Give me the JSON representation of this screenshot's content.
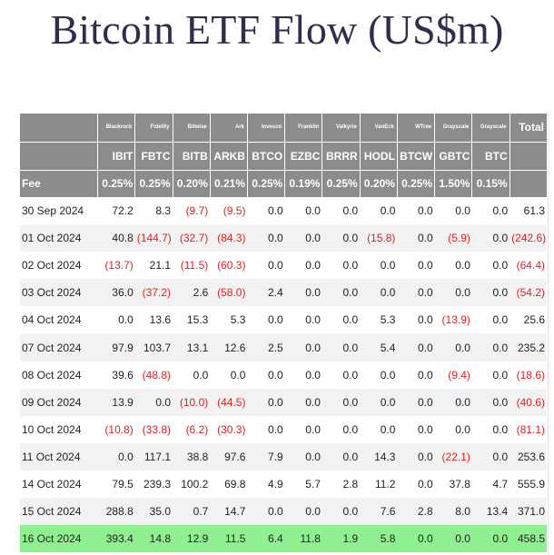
{
  "title": "Bitcoin ETF Flow (US$m)",
  "header": {
    "issuers": [
      "Blackrock",
      "Fidelity",
      "Bitwise",
      "Ark",
      "Invesco",
      "Franklin",
      "Valkyrie",
      "VanEck",
      "WTree",
      "Grayscale",
      "Grayscale"
    ],
    "total_label": "Total",
    "tickers": [
      "IBIT",
      "FBTC",
      "BITB",
      "ARKB",
      "BTCO",
      "EZBC",
      "BRRR",
      "HODL",
      "BTCW",
      "GBTC",
      "BTC"
    ],
    "fee_label": "Fee",
    "fees": [
      "0.25%",
      "0.25%",
      "0.20%",
      "0.21%",
      "0.25%",
      "0.19%",
      "0.25%",
      "0.20%",
      "0.25%",
      "1.50%",
      "0.15%"
    ]
  },
  "rows": [
    {
      "date": "30 Sep 2024",
      "values": [
        "72.2",
        "8.3",
        "(9.7)",
        "(9.5)",
        "0.0",
        "0.0",
        "0.0",
        "0.0",
        "0.0",
        "0.0",
        "0.0"
      ],
      "total": "61.3"
    },
    {
      "date": "01 Oct 2024",
      "values": [
        "40.8",
        "(144.7)",
        "(32.7)",
        "(84.3)",
        "0.0",
        "0.0",
        "0.0",
        "(15.8)",
        "0.0",
        "(5.9)",
        "0.0"
      ],
      "total": "(242.6)"
    },
    {
      "date": "02 Oct 2024",
      "values": [
        "(13.7)",
        "21.1",
        "(11.5)",
        "(60.3)",
        "0.0",
        "0.0",
        "0.0",
        "0.0",
        "0.0",
        "0.0",
        "0.0"
      ],
      "total": "(64.4)"
    },
    {
      "date": "03 Oct 2024",
      "values": [
        "36.0",
        "(37.2)",
        "2.6",
        "(58.0)",
        "2.4",
        "0.0",
        "0.0",
        "0.0",
        "0.0",
        "0.0",
        "0.0"
      ],
      "total": "(54.2)"
    },
    {
      "date": "04 Oct 2024",
      "values": [
        "0.0",
        "13.6",
        "15.3",
        "5.3",
        "0.0",
        "0.0",
        "0.0",
        "5.3",
        "0.0",
        "(13.9)",
        "0.0"
      ],
      "total": "25.6"
    },
    {
      "date": "07 Oct 2024",
      "values": [
        "97.9",
        "103.7",
        "13.1",
        "12.6",
        "2.5",
        "0.0",
        "0.0",
        "5.4",
        "0.0",
        "0.0",
        "0.0"
      ],
      "total": "235.2"
    },
    {
      "date": "08 Oct 2024",
      "values": [
        "39.6",
        "(48.8)",
        "0.0",
        "0.0",
        "0.0",
        "0.0",
        "0.0",
        "0.0",
        "0.0",
        "(9.4)",
        "0.0"
      ],
      "total": "(18.6)"
    },
    {
      "date": "09 Oct 2024",
      "values": [
        "13.9",
        "0.0",
        "(10.0)",
        "(44.5)",
        "0.0",
        "0.0",
        "0.0",
        "0.0",
        "0.0",
        "0.0",
        "0.0"
      ],
      "total": "(40.6)"
    },
    {
      "date": "10 Oct 2024",
      "values": [
        "(10.8)",
        "(33.8)",
        "(6.2)",
        "(30.3)",
        "0.0",
        "0.0",
        "0.0",
        "0.0",
        "0.0",
        "0.0",
        "0.0"
      ],
      "total": "(81.1)"
    },
    {
      "date": "11 Oct 2024",
      "values": [
        "0.0",
        "117.1",
        "38.8",
        "97.6",
        "7.9",
        "0.0",
        "0.0",
        "14.3",
        "0.0",
        "(22.1)",
        "0.0"
      ],
      "total": "253.6"
    },
    {
      "date": "14 Oct 2024",
      "values": [
        "79.5",
        "239.3",
        "100.2",
        "69.8",
        "4.9",
        "5.7",
        "2.8",
        "11.2",
        "0.0",
        "37.8",
        "4.7"
      ],
      "total": "555.9"
    },
    {
      "date": "15 Oct 2024",
      "values": [
        "288.8",
        "35.0",
        "0.7",
        "14.7",
        "0.0",
        "0.0",
        "0.0",
        "7.6",
        "2.8",
        "8.0",
        "13.4"
      ],
      "total": "371.0"
    },
    {
      "date": "16 Oct 2024",
      "values": [
        "393.4",
        "14.8",
        "12.9",
        "11.5",
        "6.4",
        "11.8",
        "1.9",
        "5.8",
        "0.0",
        "0.0",
        "0.0"
      ],
      "total": "458.5"
    }
  ],
  "colors": {
    "header_bg": "#8c8c8c",
    "negative": "#e02020",
    "highlight_row": "#8ef08e",
    "alt_row": "#f2f2f2",
    "title": "#2e2e4c"
  }
}
